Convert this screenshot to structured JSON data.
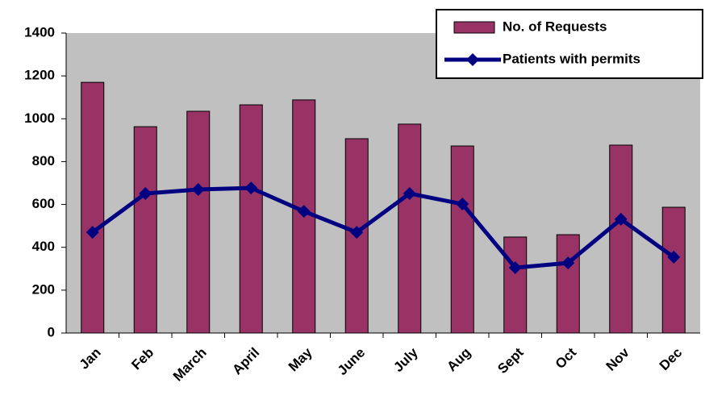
{
  "chart_data": {
    "type": "bar",
    "categories": [
      "Jan",
      "Feb",
      "March",
      "April",
      "May",
      "June",
      "July",
      "Aug",
      "Sept",
      "Oct",
      "Nov",
      "Dec"
    ],
    "series": [
      {
        "name": "No. of Requests",
        "type": "bar",
        "color": "#993366",
        "values": [
          1170,
          963,
          1035,
          1065,
          1088,
          907,
          975,
          873,
          448,
          459,
          877,
          587
        ]
      },
      {
        "name": "Patients with permits",
        "type": "line",
        "color": "#000080",
        "values": [
          470,
          651,
          670,
          677,
          568,
          470,
          651,
          602,
          305,
          327,
          531,
          354
        ]
      }
    ],
    "ylim": [
      0,
      1400
    ],
    "yticks": [
      0,
      200,
      400,
      600,
      800,
      1000,
      1200,
      1400
    ],
    "grid": false,
    "legend": "top-right",
    "plot_background": "#c0c0c0"
  }
}
